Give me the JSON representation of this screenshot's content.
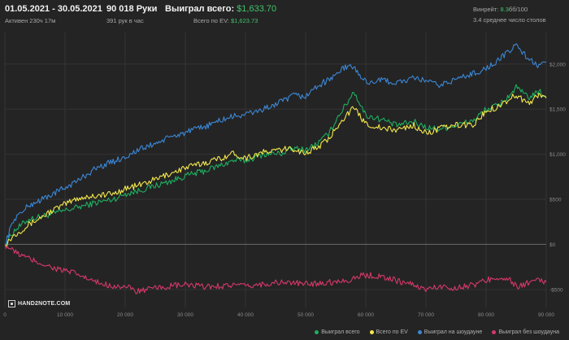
{
  "header": {
    "date_range": "01.05.2021 - 30.05.2021",
    "active": "Активен 230ч 17м",
    "hands": "90 018 Руки",
    "hands_per_hour": "391 рук в час",
    "won_total_label": "Выиграл всего:",
    "won_total_value": "$1,633.70",
    "ev_label": "Всего по EV:",
    "ev_value": "$1,623.73",
    "winrate_label": "Винрейт:",
    "winrate_value": "8.3",
    "winrate_suffix": "бб/100",
    "avg_tables": "3.4 среднее число столов"
  },
  "logo": "HAND2NOTE.COM",
  "colors": {
    "won_total": "#1fae60",
    "ev": "#f3e84a",
    "showdown": "#3b87d6",
    "non_showdown": "#d5386a",
    "background": "#242424"
  },
  "chart_data": {
    "type": "line",
    "x_ticks": [
      0,
      10000,
      20000,
      30000,
      40000,
      50000,
      60000,
      70000,
      80000,
      90000
    ],
    "x_tick_labels": [
      "0",
      "10 000",
      "20 000",
      "30 000",
      "40 000",
      "50 000",
      "60 000",
      "70 000",
      "80 000",
      "90 000"
    ],
    "y_ticks": [
      -500,
      0,
      500,
      1000,
      1500,
      2000
    ],
    "y_tick_labels": [
      "-$500",
      "$0",
      "$500",
      "$1,000",
      "$1,500",
      "$2,000"
    ],
    "xlim": [
      0,
      90000
    ],
    "ylim": [
      -700,
      2350
    ],
    "grid": true,
    "legend_position": "bottom-right",
    "series": [
      {
        "name": "Выиграл всего",
        "color_key": "won_total",
        "x": [
          0,
          1500,
          4000,
          8000,
          12000,
          15000,
          18000,
          20000,
          22000,
          25000,
          28000,
          30000,
          33000,
          36000,
          38000,
          40000,
          43000,
          46000,
          48000,
          50000,
          52000,
          54000,
          55000,
          57000,
          58000,
          60000,
          63000,
          65000,
          68000,
          70000,
          72000,
          75000,
          78000,
          80000,
          82000,
          84000,
          85000,
          87000,
          89000,
          90000
        ],
        "y": [
          0,
          150,
          280,
          340,
          410,
          460,
          500,
          560,
          590,
          650,
          710,
          760,
          810,
          880,
          930,
          930,
          1000,
          1010,
          1060,
          1050,
          1120,
          1240,
          1380,
          1580,
          1700,
          1430,
          1380,
          1320,
          1360,
          1300,
          1280,
          1320,
          1380,
          1500,
          1540,
          1660,
          1740,
          1630,
          1690,
          1634
        ]
      },
      {
        "name": "Всего по EV",
        "color_key": "ev",
        "x": [
          0,
          1500,
          4000,
          8000,
          12000,
          15000,
          18000,
          20000,
          22000,
          25000,
          28000,
          30000,
          33000,
          36000,
          38000,
          40000,
          43000,
          46000,
          48000,
          50000,
          52000,
          54000,
          55000,
          57000,
          58000,
          60000,
          63000,
          65000,
          68000,
          70000,
          72000,
          75000,
          78000,
          80000,
          82000,
          84000,
          85000,
          87000,
          89000,
          90000
        ],
        "y": [
          0,
          100,
          220,
          380,
          510,
          540,
          560,
          620,
          650,
          720,
          800,
          850,
          900,
          960,
          1010,
          960,
          1020,
          1050,
          1060,
          1010,
          1080,
          1170,
          1300,
          1450,
          1510,
          1340,
          1280,
          1270,
          1320,
          1230,
          1280,
          1320,
          1330,
          1480,
          1530,
          1620,
          1660,
          1560,
          1670,
          1624
        ]
      },
      {
        "name": "Выиграл на шоудауне",
        "color_key": "showdown",
        "x": [
          0,
          1500,
          4000,
          8000,
          12000,
          15000,
          18000,
          20000,
          22000,
          25000,
          28000,
          30000,
          33000,
          36000,
          38000,
          40000,
          43000,
          46000,
          48000,
          50000,
          52000,
          54000,
          55000,
          57000,
          58000,
          60000,
          63000,
          65000,
          68000,
          70000,
          72000,
          75000,
          78000,
          80000,
          82000,
          84000,
          85000,
          87000,
          89000,
          90000
        ],
        "y": [
          0,
          280,
          430,
          560,
          700,
          840,
          920,
          970,
          1040,
          1120,
          1200,
          1240,
          1300,
          1380,
          1420,
          1440,
          1500,
          1580,
          1650,
          1640,
          1760,
          1830,
          1890,
          1980,
          1960,
          1800,
          1820,
          1790,
          1840,
          1820,
          1760,
          1830,
          1900,
          1950,
          2040,
          2150,
          2220,
          2060,
          1970,
          2020
        ]
      },
      {
        "name": "Выиграл без шоудауна",
        "color_key": "non_showdown",
        "x": [
          0,
          1500,
          4000,
          8000,
          12000,
          15000,
          18000,
          20000,
          22000,
          25000,
          28000,
          30000,
          33000,
          36000,
          38000,
          40000,
          43000,
          46000,
          48000,
          50000,
          52000,
          54000,
          55000,
          57000,
          58000,
          60000,
          63000,
          65000,
          68000,
          70000,
          72000,
          75000,
          78000,
          80000,
          82000,
          84000,
          85000,
          87000,
          89000,
          90000
        ],
        "y": [
          0,
          -80,
          -160,
          -260,
          -330,
          -420,
          -460,
          -470,
          -520,
          -490,
          -460,
          -450,
          -470,
          -460,
          -450,
          -470,
          -440,
          -420,
          -430,
          -440,
          -430,
          -420,
          -410,
          -400,
          -370,
          -340,
          -360,
          -400,
          -450,
          -500,
          -470,
          -480,
          -450,
          -400,
          -360,
          -400,
          -470,
          -430,
          -400,
          -420
        ]
      }
    ]
  }
}
